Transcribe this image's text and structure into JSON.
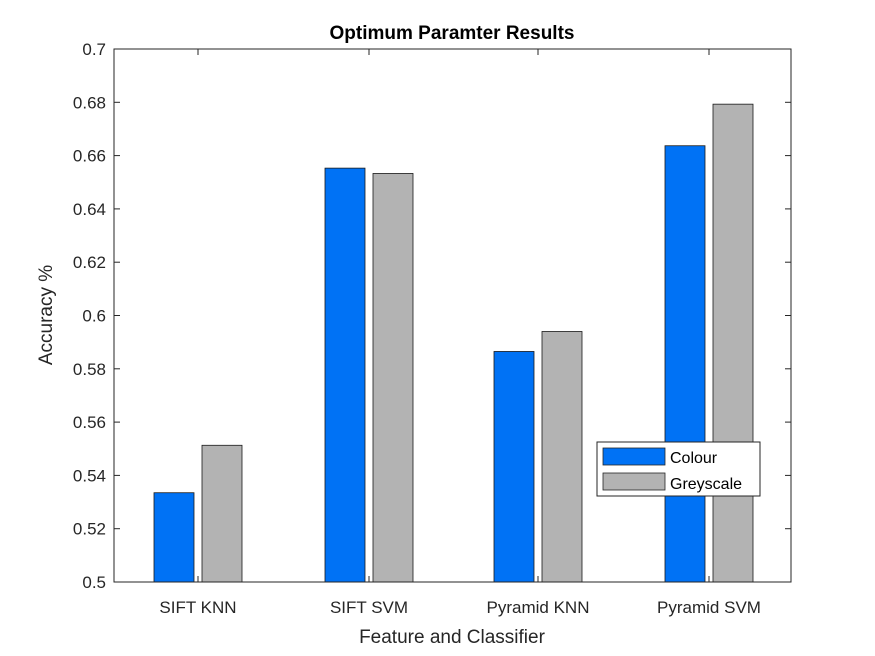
{
  "chart_data": {
    "type": "bar",
    "title": "Optimum Paramter Results",
    "xlabel": "Feature and Classifier",
    "ylabel": "Accuracy %",
    "categories": [
      "SIFT KNN",
      "SIFT SVM",
      "Pyramid KNN",
      "Pyramid SVM"
    ],
    "series": [
      {
        "name": "Colour",
        "color": "#0072F5",
        "values": [
          0.5335,
          0.6553,
          0.5865,
          0.6637
        ]
      },
      {
        "name": "Greyscale",
        "color": "#B3B3B3",
        "values": [
          0.5513,
          0.6533,
          0.594,
          0.6793
        ]
      }
    ],
    "ylim": [
      0.5,
      0.7
    ],
    "yticks": [
      "0.5",
      "0.52",
      "0.54",
      "0.56",
      "0.58",
      "0.6",
      "0.62",
      "0.64",
      "0.66",
      "0.68",
      "0.7"
    ],
    "grid": false,
    "legend_position": "lower-right"
  }
}
